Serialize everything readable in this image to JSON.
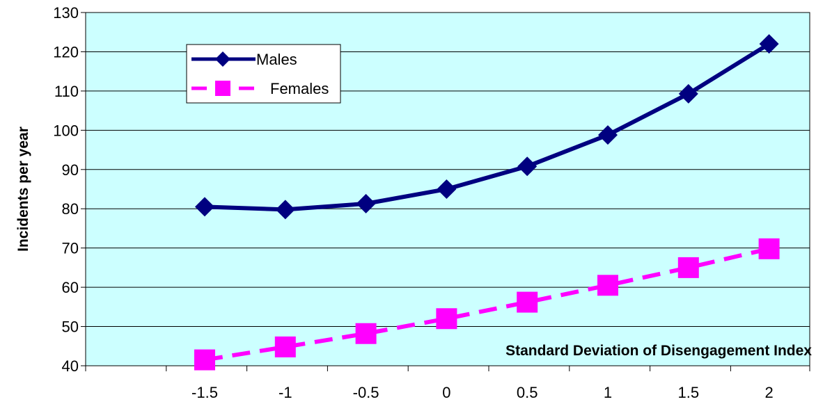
{
  "chart_data": {
    "type": "line",
    "title": "",
    "xlabel": "Standard Deviation of Disengagement Index",
    "ylabel": "Incidents per year",
    "categories": [
      "-1.5",
      "-1",
      "-0.5",
      "0",
      "0.5",
      "1",
      "1.5",
      "2"
    ],
    "ylim": [
      40,
      130
    ],
    "yticks": [
      "40",
      "50",
      "60",
      "70",
      "80",
      "90",
      "100",
      "110",
      "120",
      "130"
    ],
    "grid": true,
    "legend_position": "top-left",
    "plot_background": "#ccffff",
    "series": [
      {
        "name": "Males",
        "values": [
          80.5,
          79.8,
          81.3,
          85.0,
          90.8,
          98.8,
          109.3,
          122.0
        ],
        "color": "#000080",
        "marker": "diamond",
        "line_style": "solid"
      },
      {
        "name": "Females",
        "values": [
          41.5,
          44.8,
          48.2,
          52.0,
          56.2,
          60.5,
          65.0,
          69.8
        ],
        "color": "#ff00ff",
        "marker": "square",
        "line_style": "dashed"
      }
    ]
  }
}
